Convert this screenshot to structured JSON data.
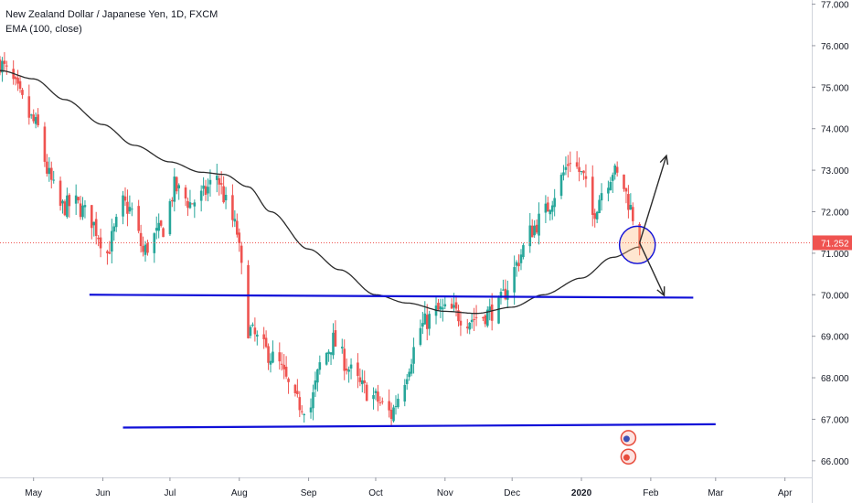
{
  "header": {
    "title": "New Zealand Dollar / Japanese Yen, 1D, FXCM",
    "indicator": "EMA (100, close)"
  },
  "price_label": "71.252",
  "colors": {
    "up": "#26a69a",
    "down": "#ef5350",
    "ema": "#2b2b2b",
    "trendline": "#1010d8",
    "price_line": "#ef5350",
    "price_tag": "#ef5350",
    "axis_text": "#131722",
    "grid": "#f0f3fa"
  },
  "chart_data": {
    "type": "candlestick",
    "title": "New Zealand Dollar / Japanese Yen, 1D, FXCM",
    "symbol": "NZDJPY",
    "interval": "1D",
    "source": "FXCM",
    "y_ticks": [
      "77.000",
      "76.000",
      "75.000",
      "74.000",
      "73.000",
      "72.000",
      "71.000",
      "70.000",
      "69.000",
      "68.000",
      "67.000",
      "66.000"
    ],
    "ylim": [
      65.6,
      77.1
    ],
    "x_labels": [
      {
        "date": "2019-05-01",
        "label": "May"
      },
      {
        "date": "2019-06-01",
        "label": "Jun"
      },
      {
        "date": "2019-07-01",
        "label": "Jul"
      },
      {
        "date": "2019-08-01",
        "label": "Aug"
      },
      {
        "date": "2019-09-01",
        "label": "Sep"
      },
      {
        "date": "2019-10-01",
        "label": "Oct"
      },
      {
        "date": "2019-11-01",
        "label": "Nov"
      },
      {
        "date": "2019-12-01",
        "label": "Dec"
      },
      {
        "date": "2020-01-01",
        "label": "2020"
      },
      {
        "date": "2020-02-01",
        "label": "Feb"
      },
      {
        "date": "2020-03-01",
        "label": "Mar"
      },
      {
        "date": "2020-04-01",
        "label": "Apr"
      }
    ],
    "xlim": [
      "2019-04-16",
      "2020-04-13"
    ],
    "current_price": 71.252,
    "close_path": [
      [
        "2019-04-16",
        75.6
      ],
      [
        "2019-04-22",
        75.1
      ],
      [
        "2019-04-29",
        74.3
      ],
      [
        "2019-05-03",
        74.0
      ],
      [
        "2019-05-07",
        73.0
      ],
      [
        "2019-05-13",
        72.1
      ],
      [
        "2019-05-20",
        72.2
      ],
      [
        "2019-05-27",
        71.8
      ],
      [
        "2019-06-03",
        71.0
      ],
      [
        "2019-06-10",
        72.2
      ],
      [
        "2019-06-14",
        72.0
      ],
      [
        "2019-06-19",
        71.0
      ],
      [
        "2019-06-24",
        71.4
      ],
      [
        "2019-06-28",
        71.6
      ],
      [
        "2019-07-03",
        72.6
      ],
      [
        "2019-07-10",
        72.2
      ],
      [
        "2019-07-16",
        72.4
      ],
      [
        "2019-07-22",
        72.9
      ],
      [
        "2019-07-26",
        72.2
      ],
      [
        "2019-07-31",
        71.5
      ],
      [
        "2019-08-05",
        69.2
      ],
      [
        "2019-08-12",
        68.7
      ],
      [
        "2019-08-19",
        68.3
      ],
      [
        "2019-08-26",
        67.4
      ],
      [
        "2019-09-02",
        67.3
      ],
      [
        "2019-09-06",
        68.3
      ],
      [
        "2019-09-12",
        68.9
      ],
      [
        "2019-09-18",
        68.3
      ],
      [
        "2019-09-24",
        67.8
      ],
      [
        "2019-10-01",
        67.5
      ],
      [
        "2019-10-08",
        67.1
      ],
      [
        "2019-10-14",
        68.0
      ],
      [
        "2019-10-21",
        69.2
      ],
      [
        "2019-10-28",
        69.6
      ],
      [
        "2019-11-04",
        69.6
      ],
      [
        "2019-11-11",
        69.4
      ],
      [
        "2019-11-18",
        69.5
      ],
      [
        "2019-11-25",
        69.7
      ],
      [
        "2019-12-02",
        70.6
      ],
      [
        "2019-12-09",
        71.5
      ],
      [
        "2019-12-16",
        72.0
      ],
      [
        "2019-12-23",
        72.8
      ],
      [
        "2019-12-27",
        73.3
      ],
      [
        "2020-01-02",
        72.8
      ],
      [
        "2020-01-06",
        71.9
      ],
      [
        "2020-01-10",
        72.5
      ],
      [
        "2020-01-15",
        73.0
      ],
      [
        "2020-01-20",
        72.6
      ],
      [
        "2020-01-24",
        71.9
      ],
      [
        "2020-01-27",
        71.25
      ]
    ],
    "ema_path": [
      [
        "2019-04-16",
        75.4
      ],
      [
        "2019-05-01",
        75.2
      ],
      [
        "2019-05-15",
        74.7
      ],
      [
        "2019-06-01",
        74.1
      ],
      [
        "2019-06-15",
        73.6
      ],
      [
        "2019-07-01",
        73.2
      ],
      [
        "2019-07-15",
        72.95
      ],
      [
        "2019-07-25",
        72.9
      ],
      [
        "2019-08-05",
        72.6
      ],
      [
        "2019-08-15",
        72.0
      ],
      [
        "2019-09-01",
        71.1
      ],
      [
        "2019-09-15",
        70.6
      ],
      [
        "2019-10-01",
        70.0
      ],
      [
        "2019-10-15",
        69.8
      ],
      [
        "2019-11-01",
        69.6
      ],
      [
        "2019-11-15",
        69.55
      ],
      [
        "2019-12-01",
        69.7
      ],
      [
        "2019-12-15",
        70.0
      ],
      [
        "2020-01-01",
        70.4
      ],
      [
        "2020-01-15",
        70.9
      ],
      [
        "2020-01-27",
        71.15
      ]
    ],
    "trendlines": [
      {
        "start": [
          "2019-05-26",
          70.0
        ],
        "end": [
          "2020-02-20",
          69.93
        ]
      },
      {
        "start": [
          "2019-06-10",
          66.8
        ],
        "end": [
          "2020-03-01",
          66.88
        ]
      }
    ],
    "arrows": [
      {
        "from": [
          "2020-01-27",
          71.25
        ],
        "to": [
          "2020-02-08",
          73.35
        ]
      },
      {
        "from": [
          "2020-01-27",
          71.25
        ],
        "to": [
          "2020-02-07",
          69.98
        ]
      }
    ],
    "ellipse": {
      "center": [
        "2020-01-26",
        71.2
      ],
      "rx_days": 8,
      "ry_price": 0.45
    },
    "grid": false,
    "legend_position": "top-left"
  }
}
